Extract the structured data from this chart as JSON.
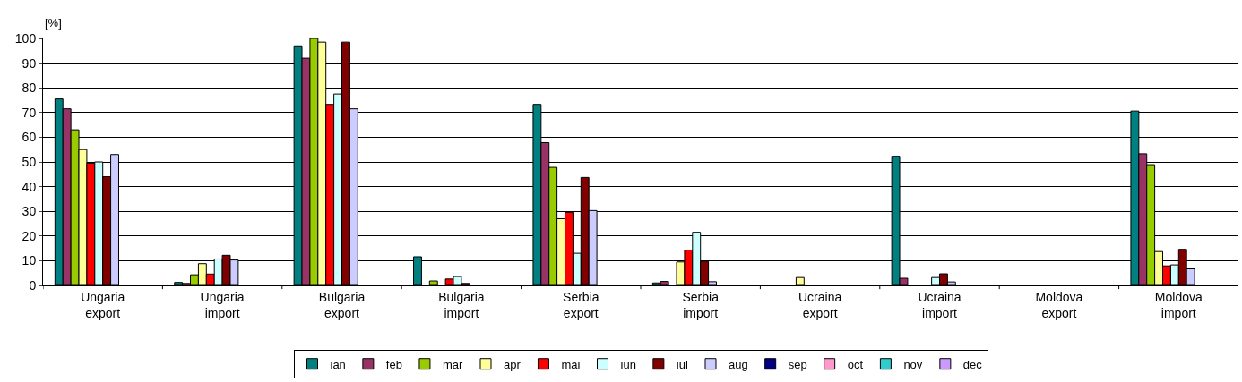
{
  "chart_data": {
    "type": "bar",
    "ylabel": "[%]",
    "categories": [
      "Ungaria\nexport",
      "Ungaria\nimport",
      "Bulgaria\nexport",
      "Bulgaria\nimport",
      "Serbia\nexport",
      "Serbia\nimport",
      "Ucraina\nexport",
      "Ucraina\nimport",
      "Moldova\nexport",
      "Moldova\nimport"
    ],
    "series": [
      {
        "name": "ian",
        "color": "#008080",
        "values": [
          75.5,
          1.2,
          97,
          11.6,
          73.3,
          1,
          null,
          52.3,
          null,
          70.6
        ]
      },
      {
        "name": "feb",
        "color": "#993366",
        "values": [
          71.5,
          0.8,
          92,
          null,
          57.8,
          1.6,
          null,
          2.9,
          null,
          53.3
        ]
      },
      {
        "name": "mar",
        "color": "#99cc00",
        "values": [
          63,
          4.3,
          100,
          1.8,
          47.8,
          null,
          null,
          null,
          null,
          48.9
        ]
      },
      {
        "name": "apr",
        "color": "#ffff99",
        "values": [
          55,
          8.8,
          98.5,
          null,
          27,
          9.5,
          3.2,
          null,
          null,
          13.7
        ]
      },
      {
        "name": "mai",
        "color": "#ff0000",
        "values": [
          49.5,
          4.6,
          73.3,
          2.6,
          29.6,
          14.3,
          null,
          null,
          null,
          7.9
        ]
      },
      {
        "name": "iun",
        "color": "#ccffff",
        "values": [
          50,
          10.7,
          77.5,
          3.6,
          13,
          21.5,
          null,
          3.2,
          null,
          8.3
        ]
      },
      {
        "name": "iul",
        "color": "#800000",
        "values": [
          44,
          12.2,
          98.5,
          0.8,
          43.7,
          9.7,
          null,
          4.7,
          null,
          14.6
        ]
      },
      {
        "name": "aug",
        "color": "#ccccff",
        "values": [
          53,
          10.3,
          71.5,
          null,
          30.3,
          1.5,
          null,
          1.4,
          null,
          6.7
        ]
      },
      {
        "name": "sep",
        "color": "#000080",
        "values": [
          null,
          null,
          null,
          null,
          null,
          null,
          null,
          null,
          null,
          null
        ]
      },
      {
        "name": "oct",
        "color": "#ff99cc",
        "values": [
          null,
          null,
          null,
          null,
          null,
          null,
          null,
          null,
          null,
          null
        ]
      },
      {
        "name": "nov",
        "color": "#33cccc",
        "values": [
          null,
          null,
          null,
          null,
          null,
          null,
          null,
          null,
          null,
          null
        ]
      },
      {
        "name": "dec",
        "color": "#cc99ff",
        "values": [
          null,
          null,
          null,
          null,
          null,
          null,
          null,
          null,
          null,
          null
        ]
      }
    ],
    "ylim": [
      0,
      100
    ],
    "yticks": [
      0,
      10,
      20,
      30,
      40,
      50,
      60,
      70,
      80,
      90,
      100
    ],
    "grid": "y",
    "legend": "bottom"
  }
}
